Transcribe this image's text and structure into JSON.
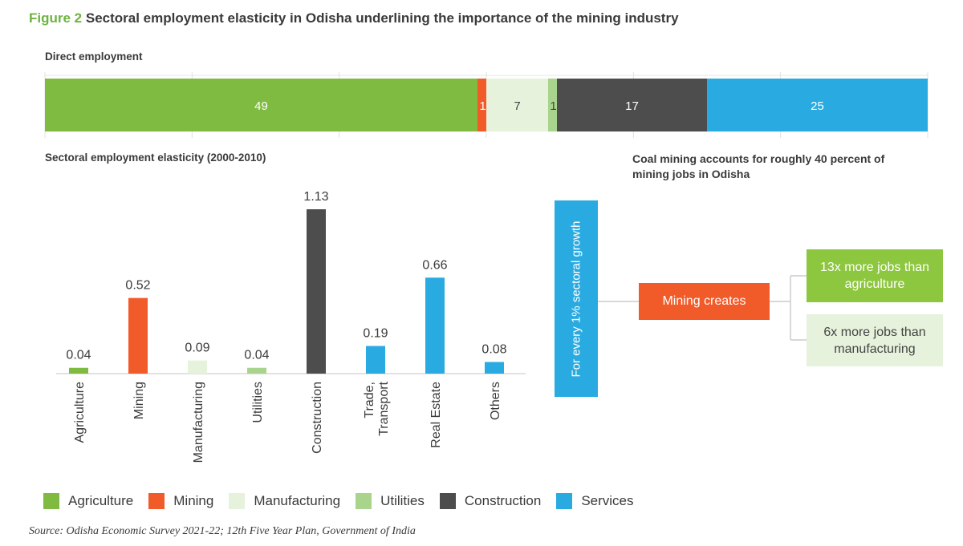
{
  "title": {
    "prefix": "Figure 2",
    "text": "Sectoral employment elasticity in Odisha underlining the importance of the mining industry"
  },
  "direct_employment_label": "Direct employment",
  "elasticity_label": "Sectoral employment elasticity (2000-2010)",
  "coal_note": "Coal mining accounts for roughly 40 percent of mining jobs in Odisha",
  "flow": {
    "growth_box": "For every 1% sectoral growth",
    "mining_box": "Mining creates",
    "jobs_agri": "13x more jobs than agriculture",
    "jobs_manu": "6x more jobs than manufacturing"
  },
  "colors": {
    "Agriculture": "#7fbb41",
    "Mining": "#f15a29",
    "Manufacturing": "#e6f2dc",
    "Utilities": "#a8d48d",
    "Construction": "#4d4d4d",
    "Services": "#29abe2"
  },
  "legend": [
    "Agriculture",
    "Mining",
    "Manufacturing",
    "Utilities",
    "Construction",
    "Services"
  ],
  "source": "Source: Odisha Economic Survey 2021-22;  12th Five Year Plan, Government of India",
  "chart_data": [
    {
      "type": "bar",
      "orientation": "horizontal-stacked",
      "title": "Direct employment",
      "categories": [
        "Agriculture",
        "Mining",
        "Manufacturing",
        "Utilities",
        "Construction",
        "Services"
      ],
      "values": [
        49,
        1,
        7,
        1,
        17,
        25
      ],
      "labels": [
        "49",
        "1",
        "7",
        "1",
        "17",
        "25"
      ]
    },
    {
      "type": "bar",
      "title": "Sectoral employment elasticity (2000-2010)",
      "categories": [
        "Agriculture",
        "Mining",
        "Manufacturing",
        "Utilities",
        "Construction",
        "Trade, Transport",
        "Real Estate",
        "Others"
      ],
      "values": [
        0.04,
        0.52,
        0.09,
        0.04,
        1.13,
        0.19,
        0.66,
        0.08
      ],
      "labels": [
        "0.04",
        "0.52",
        "0.09",
        "0.04",
        "1.13",
        "0.19",
        "0.66",
        "0.08"
      ],
      "groups": [
        "Agriculture",
        "Mining",
        "Manufacturing",
        "Utilities",
        "Construction",
        "Services",
        "Services",
        "Services"
      ],
      "ylim": [
        0,
        1.13
      ]
    }
  ]
}
